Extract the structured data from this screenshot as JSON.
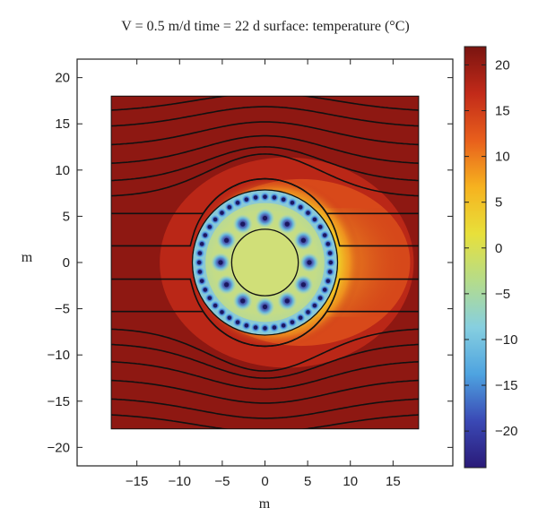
{
  "chart_data": {
    "type": "heatmap",
    "title": "V = 0.5 m/d time = 22 d surface: temperature (°C)",
    "xlabel": "m",
    "ylabel": "m",
    "xlim": [
      -22,
      22
    ],
    "ylim": [
      -22,
      22
    ],
    "x_ticks": [
      -15,
      -10,
      -5,
      0,
      5,
      10,
      15
    ],
    "y_ticks": [
      -20,
      -15,
      -10,
      -5,
      0,
      5,
      10,
      15,
      20
    ],
    "domain": {
      "x": [
        -18,
        18
      ],
      "y": [
        -18,
        18
      ]
    },
    "colorbar": {
      "label": "temperature (°C)",
      "range": [
        -24,
        22
      ],
      "ticks": [
        20,
        15,
        10,
        5,
        0,
        -5,
        -10,
        -15,
        -20
      ],
      "colors": [
        "#2a1a78",
        "#3a49b5",
        "#4ea3e0",
        "#86cfe0",
        "#b5dc8a",
        "#e8e03a",
        "#f6b21f",
        "#e85f1c",
        "#c22a19",
        "#7a1410"
      ]
    },
    "inner_circle": {
      "cx": 0,
      "cy": 0,
      "r": 3.9
    },
    "frozen_zone": {
      "cx": 0,
      "cy": 0,
      "r": 8.5
    },
    "freeze_pipes": {
      "outer_ring": {
        "radius": 7.7,
        "count": 44,
        "temperature": -22
      },
      "inner_ring": {
        "radius": 5.2,
        "count": 12,
        "temperature": -20
      }
    },
    "ambient_temperature": 20,
    "flow_velocity": "0.5 m/d",
    "time": "22 d",
    "streamline_offsets": [
      16.3,
      14.6,
      12.6,
      10.6,
      8.75,
      7.1,
      5.3,
      1.8,
      -1.8,
      -5.3,
      -7.1,
      -8.75,
      -10.6,
      -12.6,
      -14.6,
      -16.3
    ]
  }
}
